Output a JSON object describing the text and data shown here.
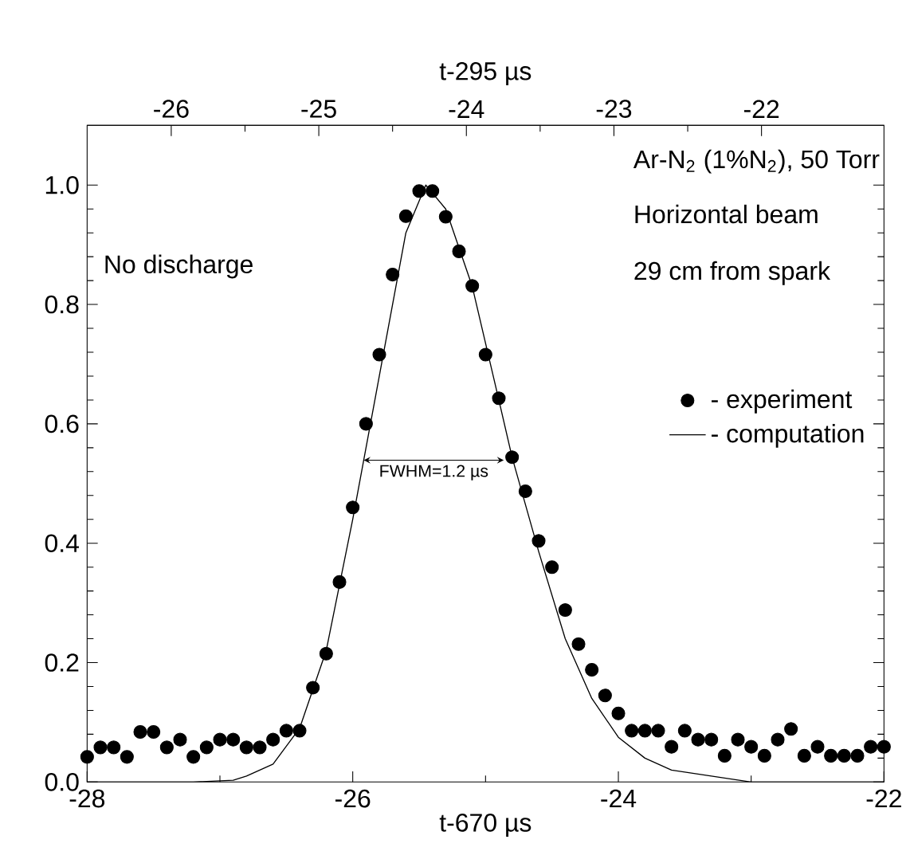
{
  "chart_data": {
    "type": "scatter",
    "xlabel": "t-670 µs",
    "x2label": "t-295 µs",
    "xlim": [
      -28,
      -22
    ],
    "xticks": [
      -28,
      -26,
      -24,
      -22
    ],
    "x2lim": [
      -26.57,
      -21.17
    ],
    "x2ticks": [
      -26,
      -25,
      -24,
      -23,
      -22
    ],
    "ylim": [
      0,
      1.1
    ],
    "yticks": [
      {
        "value": 0,
        "label": "0.0"
      },
      {
        "value": 0.2,
        "label": "0.2"
      },
      {
        "value": 0.4,
        "label": "0.4"
      },
      {
        "value": 0.6,
        "label": "0.6"
      },
      {
        "value": 0.8,
        "label": "0.8"
      },
      {
        "value": 1.0,
        "label": "1.0"
      }
    ],
    "legend": "right",
    "annotations": [
      "Ar-N$_{2}$ (1%N$_{2}$), 50 Torr",
      "Horizontal beam",
      "29 cm from spark",
      "No discharge",
      "FWHM=1.2 µs"
    ],
    "series": [
      {
        "name": "- experiment",
        "color": "#000000",
        "x": [
          -28.0,
          -27.9,
          -27.8,
          -27.7,
          -27.6,
          -27.5,
          -27.4,
          -27.3,
          -27.2,
          -27.1,
          -27.0,
          -26.9,
          -26.8,
          -26.7,
          -26.6,
          -26.5,
          -26.4,
          -26.3,
          -26.2,
          -26.1,
          -26.0,
          -25.9,
          -25.8,
          -25.7,
          -25.6,
          -25.5,
          -25.4,
          -25.3,
          -25.2,
          -25.1,
          -25.0,
          -24.9,
          -24.8,
          -24.7,
          -24.6,
          -24.5,
          -24.4,
          -24.3,
          -24.2,
          -24.1,
          -24.0,
          -23.9,
          -23.8,
          -23.7,
          -23.6,
          -23.5,
          -23.4,
          -23.3,
          -23.2,
          -23.1,
          -23.0,
          -22.9,
          -22.8,
          -22.7,
          -22.6,
          -22.5,
          -22.4,
          -22.3,
          -22.2,
          -22.1,
          -22.0
        ],
        "values": [
          0.042,
          0.058,
          0.058,
          0.042,
          0.084,
          0.084,
          0.058,
          0.071,
          0.042,
          0.058,
          0.071,
          0.071,
          0.058,
          0.058,
          0.071,
          0.086,
          0.086,
          0.158,
          0.215,
          0.335,
          0.46,
          0.6,
          0.716,
          0.85,
          0.948,
          0.99,
          0.99,
          0.947,
          0.889,
          0.831,
          0.716,
          0.643,
          0.544,
          0.487,
          0.404,
          0.36,
          0.288,
          0.231,
          0.188,
          0.145,
          0.115,
          0.086,
          0.086,
          0.086,
          0.059,
          0.086,
          0.071,
          0.071,
          0.044,
          0.071,
          0.059,
          0.044,
          0.071,
          0.089,
          0.044,
          0.059,
          0.044,
          0.044,
          0.044,
          0.059,
          0.059
        ]
      },
      {
        "name": "- computation",
        "type": "line",
        "color": "#000000",
        "x": [
          -28.0,
          -27.2,
          -26.9,
          -26.8,
          -26.6,
          -26.4,
          -26.2,
          -26.0,
          -25.8,
          -25.6,
          -25.45,
          -25.3,
          -25.1,
          -24.9,
          -24.8,
          -24.6,
          -24.4,
          -24.2,
          -24.0,
          -23.8,
          -23.6,
          -23.3,
          -23.0,
          -22.0
        ],
        "values": [
          0,
          0,
          0.003,
          0.01,
          0.03,
          0.09,
          0.22,
          0.44,
          0.68,
          0.92,
          1.0,
          0.96,
          0.83,
          0.64,
          0.544,
          0.386,
          0.24,
          0.14,
          0.075,
          0.04,
          0.02,
          0.01,
          0,
          0
        ]
      }
    ]
  }
}
